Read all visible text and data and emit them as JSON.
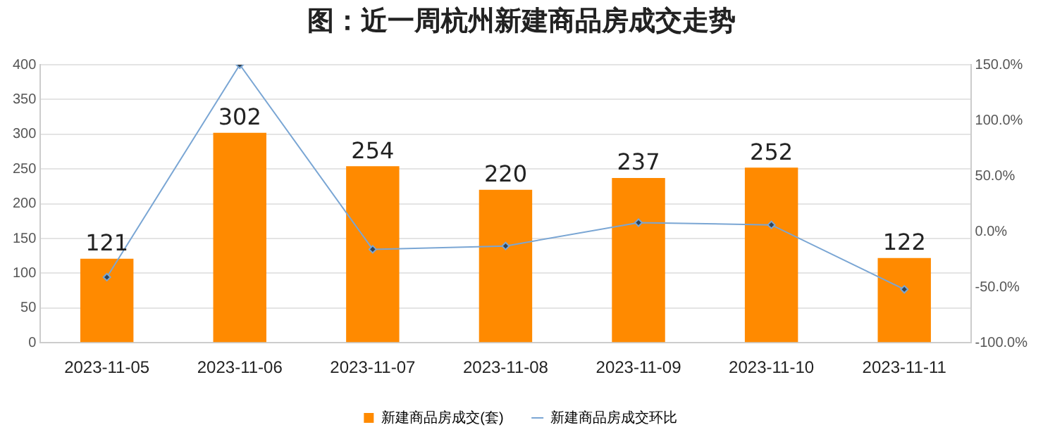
{
  "chart_data": {
    "type": "bar",
    "title": "图：近一周杭州新建商品房成交走势",
    "categories": [
      "2023-11-05",
      "2023-11-06",
      "2023-11-07",
      "2023-11-08",
      "2023-11-09",
      "2023-11-10",
      "2023-11-11"
    ],
    "series": [
      {
        "name": "新建商品房成交(套)",
        "color": "#ff8a00",
        "values": [
          121,
          302,
          254,
          220,
          237,
          252,
          122
        ],
        "data_labels": true
      },
      {
        "name": "新建商品房成交环比",
        "type": "line",
        "axis": "y2",
        "color": "#7aa6d4",
        "marker": "diamond",
        "values": [
          -41,
          150,
          -16,
          -13,
          8,
          6,
          -52
        ]
      }
    ],
    "ylim": [
      0,
      400
    ],
    "yticks": [
      0,
      50,
      100,
      150,
      200,
      250,
      300,
      350,
      400
    ],
    "y2lim": [
      -100,
      150
    ],
    "y2ticks": [
      {
        "value": -100,
        "label": "-100.0%"
      },
      {
        "value": -50,
        "label": "-50.0%"
      },
      {
        "value": 0,
        "label": "0.0%"
      },
      {
        "value": 50,
        "label": "50.0%"
      },
      {
        "value": 100,
        "label": "100.0%"
      },
      {
        "value": 150,
        "label": "150.0%"
      }
    ],
    "grid": "y",
    "legend": "bottom"
  }
}
